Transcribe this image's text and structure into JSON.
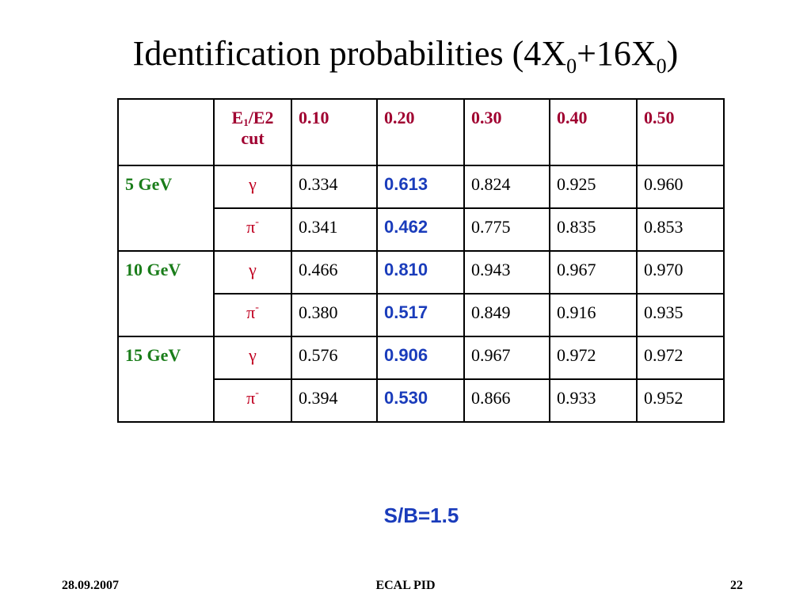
{
  "slide": {
    "title_prefix": "Identification probabilities (4X",
    "title_sub_1": "0",
    "title_mid": "+16X",
    "title_sub_2": "0",
    "title_suffix": ")"
  },
  "table": {
    "cut_label_1": "E",
    "cut_label_sub": "1",
    "cut_label_2": "/E2",
    "cut_label_3": "cut",
    "cut_values": [
      "0.10",
      "0.20",
      "0.30",
      "0.40",
      "0.50"
    ],
    "groups": [
      {
        "energy": "5 GeV",
        "rows": [
          {
            "particle": "γ",
            "particle_sup": "",
            "values": [
              "0.334",
              "0.613",
              "0.824",
              "0.925",
              "0.960"
            ]
          },
          {
            "particle": "π",
            "particle_sup": "-",
            "values": [
              "0.341",
              "0.462",
              "0.775",
              "0.835",
              "0.853"
            ]
          }
        ]
      },
      {
        "energy": "10 GeV",
        "rows": [
          {
            "particle": "γ",
            "particle_sup": "",
            "values": [
              "0.466",
              "0.810",
              "0.943",
              "0.967",
              "0.970"
            ]
          },
          {
            "particle": "π",
            "particle_sup": "-",
            "values": [
              "0.380",
              "0.517",
              "0.849",
              "0.916",
              "0.935"
            ]
          }
        ]
      },
      {
        "energy": "15 GeV",
        "rows": [
          {
            "particle": "γ",
            "particle_sup": "",
            "values": [
              "0.576",
              "0.906",
              "0.967",
              "0.972",
              "0.972"
            ]
          },
          {
            "particle": "π",
            "particle_sup": "-",
            "values": [
              "0.394",
              "0.530",
              "0.866",
              "0.933",
              "0.952"
            ]
          }
        ]
      }
    ]
  },
  "note": "S/B=1.5",
  "footer": {
    "date": "28.09.2007",
    "center": "ECAL PID",
    "page": "22"
  },
  "colors": {
    "header_red": "#a00030",
    "energy_green": "#1a7d1a",
    "highlight_blue": "#1a3cbb"
  }
}
